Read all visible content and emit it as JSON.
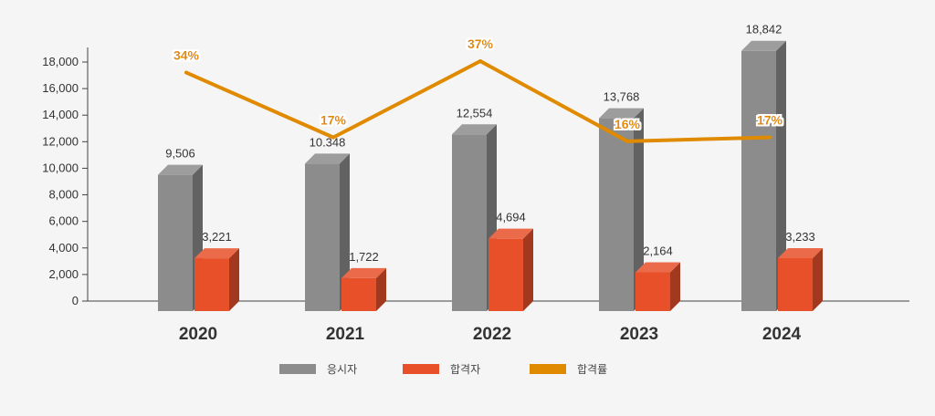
{
  "chart_data": {
    "type": "bar",
    "categories": [
      "2020",
      "2021",
      "2022",
      "2023",
      "2024"
    ],
    "category_labels": [
      "2020",
      "2021",
      "2022",
      "2023",
      "2024"
    ],
    "ylim": [
      0,
      18000
    ],
    "yticks": [
      0,
      2000,
      4000,
      6000,
      8000,
      10000,
      12000,
      14000,
      16000,
      18000
    ],
    "ytick_labels": [
      "0",
      "2,000",
      "4,000",
      "6,000",
      "8,000",
      "10,000",
      "12,000",
      "14,000",
      "16,000",
      "18,000"
    ],
    "series": [
      {
        "name": "응시자",
        "kind": "bar",
        "color": "#8c8c8c",
        "values": [
          9506,
          10348,
          12554,
          13768,
          18842
        ],
        "labels": [
          "9,506",
          "10.348",
          "12,554",
          "13,768",
          "18,842"
        ]
      },
      {
        "name": "합격자",
        "kind": "bar",
        "color": "#e8502a",
        "values": [
          3221,
          1722,
          4694,
          2164,
          3233
        ],
        "labels": [
          "3,221",
          "1,722",
          "4,694",
          "2,164",
          "3,233"
        ]
      },
      {
        "name": "합격률",
        "kind": "line",
        "color": "#e08a00",
        "values": [
          34,
          17,
          37,
          16,
          17
        ],
        "labels": [
          "34%",
          "17%",
          "37%",
          "16%",
          "17%"
        ]
      }
    ],
    "grid": false,
    "legend_position": "bottom"
  }
}
